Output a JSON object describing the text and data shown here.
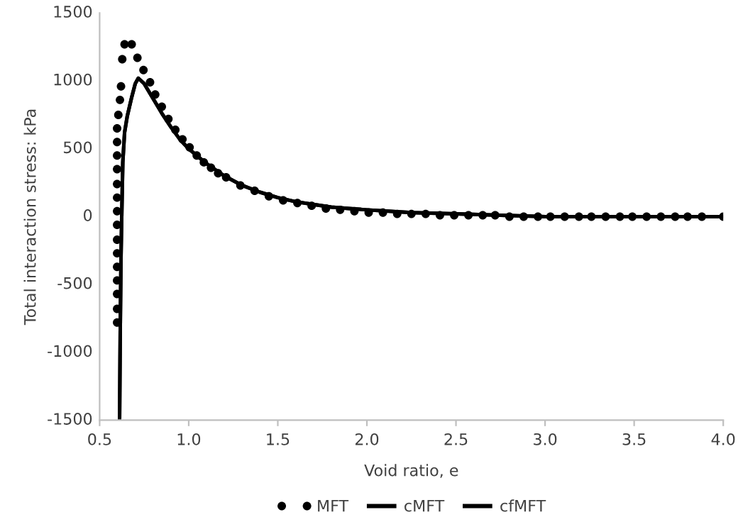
{
  "chart_data": {
    "type": "line",
    "xlabel": "Void ratio, e",
    "ylabel": "Total interaction stress: kPa",
    "xlim": [
      0.5,
      4.0
    ],
    "xticks": [
      {
        "value": 0.5,
        "label": "0.5"
      },
      {
        "value": 1.0,
        "label": "1.0"
      },
      {
        "value": 1.5,
        "label": "1.5"
      },
      {
        "value": 2.0,
        "label": "2.0"
      },
      {
        "value": 2.5,
        "label": "2.5"
      },
      {
        "value": 3.0,
        "label": "3.0"
      },
      {
        "value": 3.5,
        "label": "3.5"
      },
      {
        "value": 4.0,
        "label": "4.0"
      }
    ],
    "ylim": [
      -1500,
      1500
    ],
    "yticks": [
      -1500,
      -1000,
      -500,
      0,
      500,
      1000,
      1500
    ],
    "grid": false,
    "legend": "bottom",
    "series": [
      {
        "name": "MFT",
        "type": "scatter",
        "marker": "circle",
        "color": "#000000",
        "x": [
          0.598,
          0.598,
          0.598,
          0.598,
          0.598,
          0.598,
          0.598,
          0.598,
          0.598,
          0.598,
          0.598,
          0.598,
          0.598,
          0.598,
          0.598,
          0.605,
          0.614,
          0.62,
          0.627,
          0.64,
          0.68,
          0.712,
          0.746,
          0.783,
          0.812,
          0.849,
          0.886,
          0.925,
          0.965,
          1.005,
          1.045,
          1.085,
          1.125,
          1.165,
          1.21,
          1.29,
          1.37,
          1.45,
          1.53,
          1.61,
          1.69,
          1.77,
          1.85,
          1.93,
          2.01,
          2.09,
          2.17,
          2.25,
          2.33,
          2.41,
          2.49,
          2.57,
          2.65,
          2.72,
          2.8,
          2.88,
          2.96,
          3.03,
          3.11,
          3.19,
          3.26,
          3.34,
          3.42,
          3.49,
          3.57,
          3.65,
          3.73,
          3.8,
          3.88,
          4.0
        ],
        "values": [
          -780,
          -680,
          -570,
          -470,
          -370,
          -270,
          -170,
          -60,
          40,
          140,
          240,
          350,
          450,
          550,
          650,
          750,
          860,
          960,
          1160,
          1270,
          1270,
          1170,
          1080,
          990,
          900,
          810,
          720,
          640,
          570,
          510,
          450,
          400,
          360,
          320,
          290,
          230,
          190,
          150,
          120,
          100,
          80,
          60,
          50,
          40,
          30,
          30,
          20,
          20,
          20,
          10,
          10,
          10,
          10,
          10,
          0,
          0,
          0,
          0,
          0,
          0,
          0,
          0,
          0,
          0,
          0,
          0,
          0,
          0,
          0,
          0
        ]
      },
      {
        "name": "cMFT",
        "marker": "none",
        "line_style": "solid",
        "color": "#000000",
        "x": [
          0.612,
          0.616,
          0.62,
          0.624,
          0.63,
          0.64,
          0.655,
          0.68,
          0.7,
          0.717,
          0.75,
          0.8,
          0.85,
          0.9,
          0.95,
          1.0,
          1.1,
          1.2,
          1.3,
          1.4,
          1.5,
          1.6,
          1.7,
          1.8,
          1.9,
          2.0,
          2.25,
          2.5,
          2.75,
          3.0,
          3.5,
          4.0
        ],
        "values": [
          -1500,
          -800,
          -300,
          0,
          400,
          620,
          740,
          880,
          980,
          1020,
          980,
          870,
          760,
          660,
          570,
          500,
          390,
          300,
          230,
          180,
          140,
          110,
          90,
          70,
          60,
          50,
          30,
          20,
          10,
          0,
          0,
          0
        ]
      },
      {
        "name": "cfMFT",
        "marker": "none",
        "line_style": "solid",
        "color": "#000000",
        "x": [
          0.612,
          0.616,
          0.62,
          0.624,
          0.63,
          0.64,
          0.655,
          0.68,
          0.7,
          0.717,
          0.75,
          0.8,
          0.85,
          0.9,
          0.95,
          1.0,
          1.1,
          1.2,
          1.3,
          1.4,
          1.5,
          1.6,
          1.7,
          1.8,
          1.9,
          2.0,
          2.25,
          2.5,
          2.75,
          3.0,
          3.5,
          4.0
        ],
        "values": [
          -1500,
          -800,
          -300,
          0,
          400,
          620,
          740,
          880,
          980,
          1020,
          980,
          870,
          760,
          660,
          570,
          500,
          390,
          300,
          230,
          180,
          140,
          110,
          90,
          70,
          60,
          50,
          30,
          20,
          10,
          0,
          0,
          0
        ]
      }
    ]
  }
}
